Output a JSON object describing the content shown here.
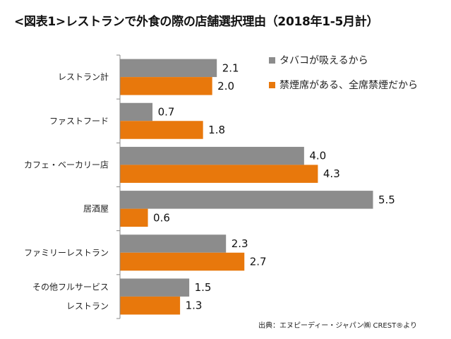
{
  "chart_data": {
    "type": "bar",
    "orientation": "horizontal",
    "title": "<図表1>レストランで外食の際の店舗選択理由（2018年1-5月計）",
    "categories": [
      "レストラン計",
      "ファストフード",
      "カフェ・ベーカリー店",
      "居酒屋",
      "ファミリーレストラン",
      "その他フルサービス\nレストラン"
    ],
    "series": [
      {
        "name": "タバコが吸えるから",
        "color": "#8c8c8c",
        "values": [
          2.1,
          0.7,
          4.0,
          5.5,
          2.3,
          1.5
        ]
      },
      {
        "name": "禁煙席がある、全席禁煙だから",
        "color": "#e8780c",
        "values": [
          2.0,
          1.8,
          4.3,
          0.6,
          2.7,
          1.3
        ]
      }
    ],
    "xlabel": "",
    "ylabel": "",
    "xlim": [
      0,
      5.5
    ],
    "grid": false,
    "legend_position": "top-right",
    "data_labels": true,
    "annotation": "出典：エヌピーディー・ジャパン㈱ CREST®より"
  },
  "title": "<図表1>レストランで外食の際の店舗選択理由（2018年1-5月計）",
  "legend": {
    "items": [
      {
        "label": "タバコが吸えるから",
        "color": "#8c8c8c"
      },
      {
        "label": "禁煙席がある、全席禁煙だから",
        "color": "#e8780c"
      }
    ]
  },
  "source": "出典：エヌピーディー・ジャパン㈱ CREST®より"
}
